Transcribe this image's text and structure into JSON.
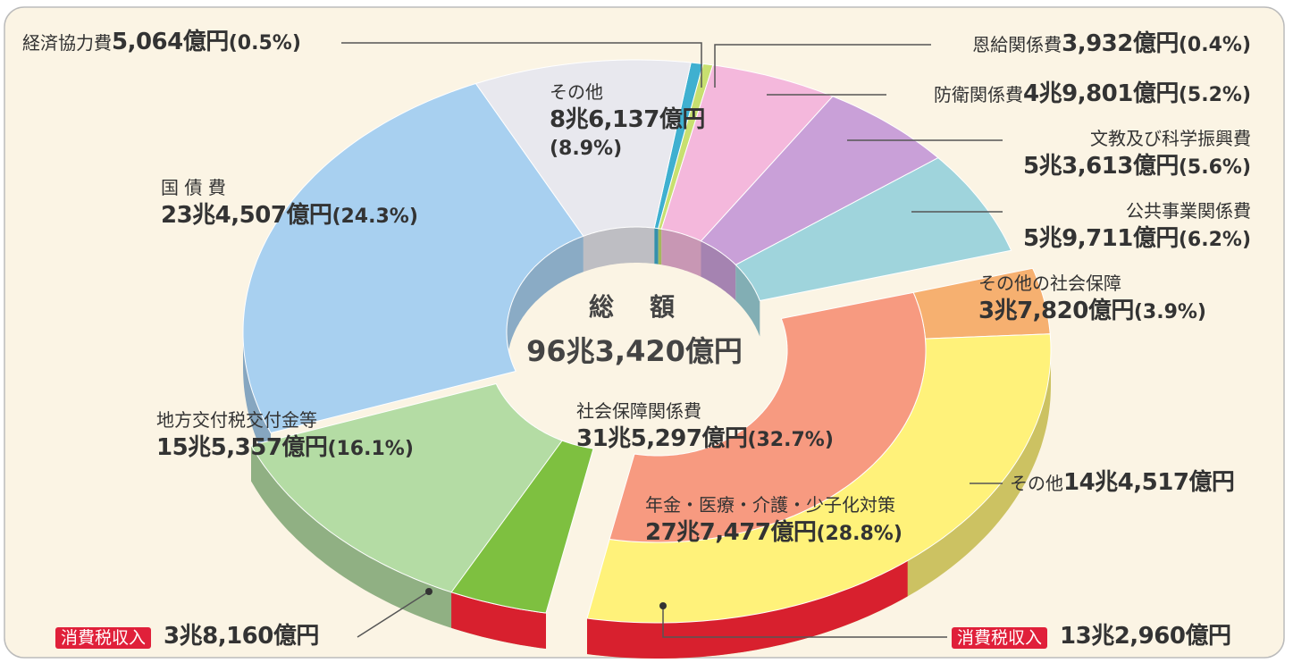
{
  "chart_data": {
    "type": "pie",
    "center_label": "総　額",
    "center_value": "96兆3,420億円",
    "categories": [
      "経済協力費",
      "恩給関係費",
      "防衛関係費",
      "文教及び科学振興費",
      "公共事業関係費",
      "その他の社会保障",
      "年金・医療・介護・少子化対策",
      "地方交付税交付金等",
      "国 債 費",
      "その他"
    ],
    "amounts": [
      "5,064億円",
      "3,932億円",
      "4兆9,801億円",
      "5兆3,613億円",
      "5兆9,711億円",
      "3兆7,820億円",
      "27兆7,477億円",
      "15兆5,357億円",
      "23兆4,507億円",
      "8兆6,137億円"
    ],
    "values": [
      0.5,
      0.4,
      5.2,
      5.6,
      6.2,
      3.9,
      28.8,
      16.1,
      24.3,
      8.9
    ],
    "value_labels": [
      "(0.5%)",
      "(0.4%)",
      "(5.2%)",
      "(5.6%)",
      "(6.2%)",
      "(3.9%)",
      "(28.8%)",
      "(16.1%)",
      "(24.3%)",
      "(8.9%)"
    ],
    "colors": [
      "#3fb0d0",
      "#c8e070",
      "#f4b8dc",
      "#c9a0d8",
      "#9fd4dc",
      "#f6b070",
      "#fff27a",
      "#b4dca4",
      "#a8d0f0",
      "#e8e8ee"
    ],
    "group": {
      "name": "社会保障関係費",
      "amount": "31兆5,297億円",
      "value": 32.7,
      "value_label": "(32.7%)",
      "color": "#f79a80"
    },
    "annotations": [
      {
        "label": "その他",
        "amount": "14兆4,517億円"
      },
      {
        "label": "消費税収入",
        "amount": "13兆2,960億円"
      },
      {
        "label": "消費税収入",
        "amount": "3兆8,160億円"
      }
    ]
  }
}
